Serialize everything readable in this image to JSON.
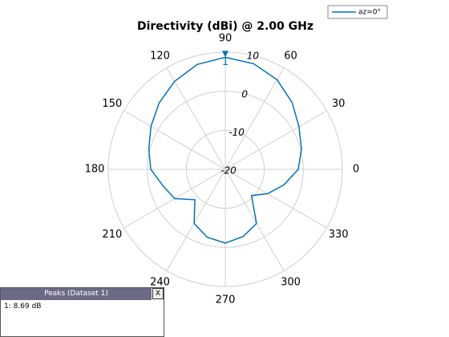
{
  "chart_data": {
    "type": "polar",
    "title": "Directivity (dBi) @ 2.00 GHz",
    "theta": [
      0,
      15,
      30,
      45,
      60,
      75,
      90,
      105,
      120,
      135,
      150,
      165,
      180,
      195,
      210,
      225,
      240,
      255,
      270,
      285,
      300,
      315,
      330,
      345
    ],
    "series": [
      {
        "name": "az=0°",
        "color": "#0072bd",
        "values": [
          -1.3,
          0.2,
          1.8,
          4.2,
          6.5,
          8.0,
          8.69,
          7.8,
          6.0,
          4.0,
          2.0,
          0.3,
          -0.9,
          -3.5,
          -5.0,
          -9.0,
          -4.0,
          -2.0,
          -1.1,
          -2.2,
          -4.0,
          -10.5,
          -7.5,
          -4.5
        ]
      }
    ],
    "rlim": [
      -20,
      10
    ],
    "rticks": [
      -20,
      -10,
      0,
      10
    ],
    "thetaticks": [
      0,
      30,
      60,
      90,
      120,
      150,
      180,
      210,
      240,
      270,
      300,
      330
    ],
    "grid": true,
    "legend": "top-right",
    "marker": {
      "label": "1",
      "index": 6
    }
  },
  "peaks_panel": {
    "title": "Peaks (Dataset 1)",
    "close": "X",
    "rows": [
      "1: 8.69 dB"
    ]
  }
}
